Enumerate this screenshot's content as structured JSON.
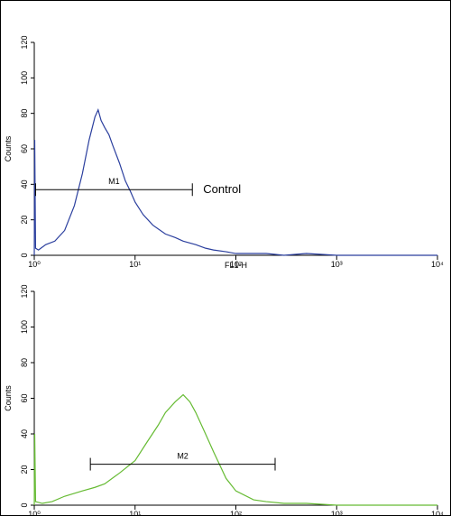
{
  "chart_data": [
    {
      "type": "line",
      "xlabel": "FL1-H",
      "ylabel": "Counts",
      "log_x": true,
      "xlim": [
        1,
        10000
      ],
      "ylim": [
        0,
        120
      ],
      "xticks": [
        {
          "value": 1,
          "label": "10⁰"
        },
        {
          "value": 10,
          "label": "10¹"
        },
        {
          "value": 100,
          "label": "10²"
        },
        {
          "value": 1000,
          "label": "10³"
        },
        {
          "value": 10000,
          "label": "10⁴"
        }
      ],
      "yticks": [
        0,
        20,
        40,
        60,
        80,
        100,
        120
      ],
      "series": [
        {
          "color": "#2b3f9e",
          "x": [
            1,
            1.01,
            1.03,
            1.1,
            1.3,
            1.6,
            2,
            2.5,
            3,
            3.5,
            4,
            4.3,
            4.6,
            5,
            5.5,
            6,
            7,
            8,
            9,
            10,
            12,
            15,
            20,
            25,
            30,
            40,
            50,
            60,
            80,
            100,
            150,
            200,
            300,
            500,
            1000,
            3000,
            10000
          ],
          "values": [
            0,
            65,
            4,
            3,
            6,
            8,
            14,
            28,
            46,
            65,
            78,
            82,
            76,
            72,
            68,
            62,
            52,
            42,
            36,
            30,
            23,
            17,
            12,
            10,
            8,
            6,
            4,
            3,
            2,
            1,
            1,
            1,
            0,
            1,
            0,
            0,
            0
          ]
        }
      ],
      "gates": [
        {
          "label": "M1",
          "start": 1.03,
          "end": 37,
          "level": 37
        }
      ],
      "annotation": "Control"
    },
    {
      "type": "line",
      "ylabel": "Counts",
      "log_x": true,
      "xlim": [
        1,
        10000
      ],
      "ylim": [
        0,
        120
      ],
      "xticks": [
        {
          "value": 1,
          "label": "10⁰"
        },
        {
          "value": 10,
          "label": "10¹"
        },
        {
          "value": 100,
          "label": "10²"
        },
        {
          "value": 1000,
          "label": "10³"
        },
        {
          "value": 10000,
          "label": "10⁴"
        }
      ],
      "yticks": [
        0,
        20,
        40,
        60,
        80,
        100,
        120
      ],
      "series": [
        {
          "color": "#66bb33",
          "x": [
            1,
            1.01,
            1.03,
            1.2,
            1.5,
            2,
            3,
            4,
            5,
            7,
            10,
            13,
            17,
            20,
            25,
            30,
            35,
            40,
            50,
            60,
            80,
            100,
            150,
            200,
            300,
            500,
            1000,
            3000,
            10000
          ],
          "values": [
            0,
            40,
            2,
            1,
            2,
            5,
            8,
            10,
            12,
            18,
            25,
            35,
            45,
            52,
            58,
            62,
            58,
            52,
            40,
            30,
            15,
            8,
            3,
            2,
            1,
            1,
            0,
            0,
            0
          ]
        }
      ],
      "gates": [
        {
          "label": "M2",
          "start": 3.6,
          "end": 245,
          "level": 23
        }
      ]
    }
  ]
}
